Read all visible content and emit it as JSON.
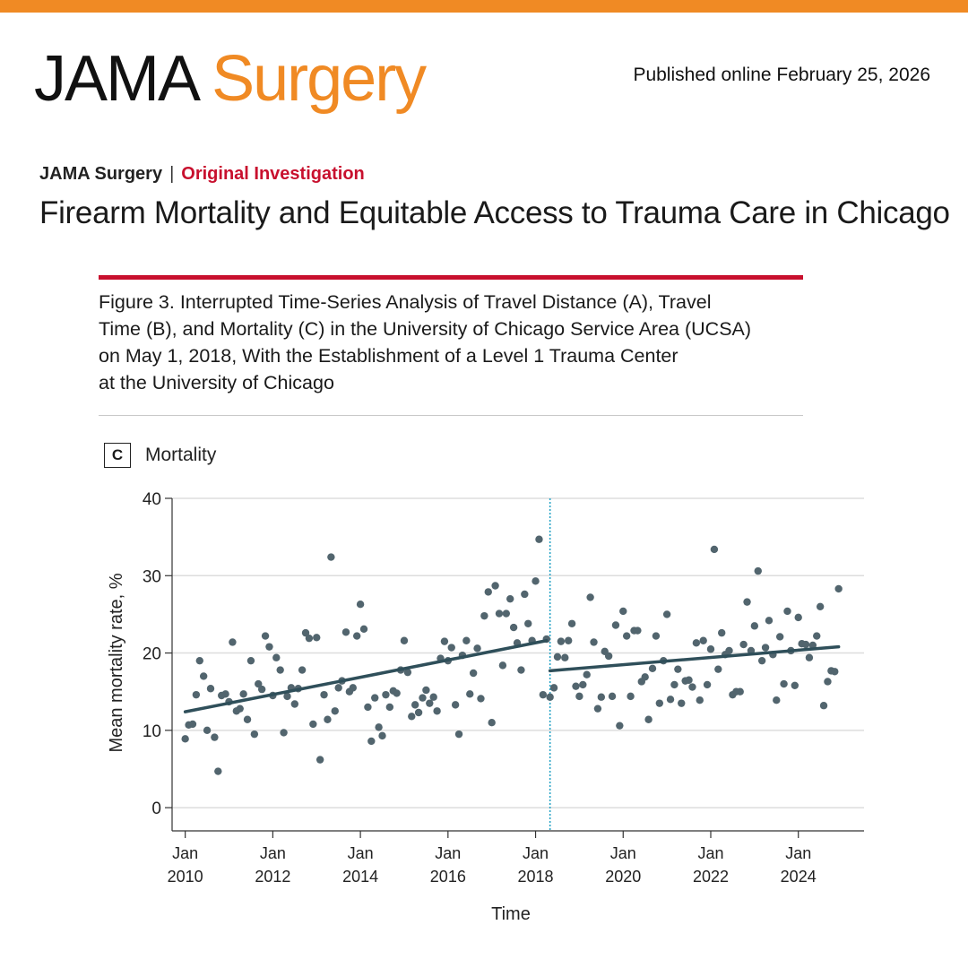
{
  "header": {
    "logo_word1": "JAMA",
    "logo_word2": "Surgery",
    "published": "Published online February 25, 2026"
  },
  "article": {
    "journal": "JAMA Surgery",
    "separator": "|",
    "type": "Original Investigation",
    "title": "Firearm Mortality and Equitable Access to Trauma Care in Chicago"
  },
  "figure": {
    "caption_lines": [
      "Figure 3. Interrupted Time-Series Analysis of Travel Distance (A), Travel",
      "Time (B), and Mortality (C) in the University of Chicago Service Area (UCSA)",
      "on May 1, 2018, With the Establishment of a Level 1 Trauma Center",
      "at the University of Chicago"
    ],
    "panel_letter": "C",
    "panel_title": "Mortality"
  },
  "colors": {
    "brand_orange": "#f08a24",
    "accent_red": "#c8102e",
    "point_color": "#52656e",
    "trend_color": "#2f4f5a",
    "intervention_line": "#2aa5c7"
  },
  "chart_data": {
    "type": "scatter",
    "xlabel": "Time",
    "ylabel": "Mean mortality rate, %",
    "xlim": [
      2009.7,
      2025.5
    ],
    "ylim": [
      -3,
      40
    ],
    "yticks": [
      0,
      10,
      20,
      30,
      40
    ],
    "xticks": [
      {
        "x": 2010,
        "label": [
          "Jan",
          "2010"
        ]
      },
      {
        "x": 2012,
        "label": [
          "Jan",
          "2012"
        ]
      },
      {
        "x": 2014,
        "label": [
          "Jan",
          "2014"
        ]
      },
      {
        "x": 2016,
        "label": [
          "Jan",
          "2016"
        ]
      },
      {
        "x": 2018,
        "label": [
          "Jan",
          "2018"
        ]
      },
      {
        "x": 2020,
        "label": [
          "Jan",
          "2020"
        ]
      },
      {
        "x": 2022,
        "label": [
          "Jan",
          "2022"
        ]
      },
      {
        "x": 2024,
        "label": [
          "Jan",
          "2024"
        ]
      }
    ],
    "grid": "horizontal",
    "intervention": 2018.33,
    "trend_lines": [
      {
        "x": [
          2010,
          2018.25
        ],
        "y": [
          12.4,
          21.6
        ]
      },
      {
        "x": [
          2018.33,
          2024.92
        ],
        "y": [
          17.7,
          20.8
        ]
      }
    ],
    "points": {
      "x": [
        2010.0,
        2010.08,
        2010.17,
        2010.25,
        2010.33,
        2010.42,
        2010.5,
        2010.58,
        2010.67,
        2010.75,
        2010.83,
        2010.92,
        2011.0,
        2011.08,
        2011.17,
        2011.25,
        2011.33,
        2011.42,
        2011.5,
        2011.58,
        2011.67,
        2011.75,
        2011.83,
        2011.92,
        2012.0,
        2012.08,
        2012.17,
        2012.25,
        2012.33,
        2012.42,
        2012.5,
        2012.58,
        2012.67,
        2012.75,
        2012.83,
        2012.92,
        2013.0,
        2013.08,
        2013.17,
        2013.25,
        2013.33,
        2013.42,
        2013.5,
        2013.58,
        2013.67,
        2013.75,
        2013.83,
        2013.92,
        2014.0,
        2014.08,
        2014.17,
        2014.25,
        2014.33,
        2014.42,
        2014.5,
        2014.58,
        2014.67,
        2014.75,
        2014.83,
        2014.92,
        2015.0,
        2015.08,
        2015.17,
        2015.25,
        2015.33,
        2015.42,
        2015.5,
        2015.58,
        2015.67,
        2015.75,
        2015.83,
        2015.92,
        2016.0,
        2016.08,
        2016.17,
        2016.25,
        2016.33,
        2016.42,
        2016.5,
        2016.58,
        2016.67,
        2016.75,
        2016.83,
        2016.92,
        2017.0,
        2017.08,
        2017.17,
        2017.25,
        2017.33,
        2017.42,
        2017.5,
        2017.58,
        2017.67,
        2017.75,
        2017.83,
        2017.92,
        2018.0,
        2018.08,
        2018.17,
        2018.25,
        2018.33,
        2018.42,
        2018.5,
        2018.58,
        2018.67,
        2018.75,
        2018.83,
        2018.92,
        2019.0,
        2019.08,
        2019.17,
        2019.25,
        2019.33,
        2019.42,
        2019.5,
        2019.58,
        2019.67,
        2019.75,
        2019.83,
        2019.92,
        2020.0,
        2020.08,
        2020.17,
        2020.25,
        2020.33,
        2020.42,
        2020.5,
        2020.58,
        2020.67,
        2020.75,
        2020.83,
        2020.92,
        2021.0,
        2021.08,
        2021.17,
        2021.25,
        2021.33,
        2021.42,
        2021.5,
        2021.58,
        2021.67,
        2021.75,
        2021.83,
        2021.92,
        2022.0,
        2022.08,
        2022.17,
        2022.25,
        2022.33,
        2022.42,
        2022.5,
        2022.58,
        2022.67,
        2022.75,
        2022.83,
        2022.92,
        2023.0,
        2023.08,
        2023.17,
        2023.25,
        2023.33,
        2023.42,
        2023.5,
        2023.58,
        2023.67,
        2023.75,
        2023.83,
        2023.92,
        2024.0,
        2024.08,
        2024.17,
        2024.25,
        2024.33,
        2024.42,
        2024.5,
        2024.58,
        2024.67,
        2024.75,
        2024.83,
        2024.92
      ],
      "y": [
        8.9,
        10.7,
        10.8,
        14.6,
        19.0,
        17.0,
        10.0,
        15.4,
        9.1,
        4.7,
        14.5,
        14.7,
        13.7,
        21.4,
        12.5,
        12.8,
        14.7,
        11.4,
        19.0,
        9.5,
        16.0,
        15.3,
        22.2,
        20.8,
        14.5,
        19.4,
        17.8,
        9.7,
        14.4,
        15.5,
        13.4,
        15.4,
        17.8,
        22.6,
        21.9,
        10.8,
        22.0,
        6.2,
        14.6,
        11.4,
        32.4,
        12.5,
        15.5,
        16.4,
        22.7,
        15.0,
        15.5,
        22.2,
        26.3,
        23.1,
        13.0,
        8.6,
        14.2,
        10.4,
        9.3,
        14.6,
        13.0,
        15.1,
        14.8,
        17.8,
        21.6,
        17.5,
        11.8,
        13.3,
        12.3,
        14.2,
        15.2,
        13.5,
        14.3,
        12.5,
        19.3,
        21.5,
        19.0,
        20.7,
        13.3,
        9.5,
        19.7,
        21.6,
        14.7,
        17.4,
        20.6,
        14.1,
        24.8,
        27.9,
        11.0,
        28.7,
        25.1,
        18.4,
        25.1,
        27.0,
        23.3,
        21.3,
        17.8,
        27.6,
        23.8,
        21.6,
        29.3,
        34.7,
        14.6,
        21.8,
        14.3,
        15.5,
        19.5,
        21.5,
        19.4,
        21.6,
        23.8,
        15.7,
        14.4,
        15.9,
        17.2,
        27.2,
        21.4,
        12.8,
        14.3,
        20.2,
        19.6,
        14.4,
        23.6,
        10.6,
        25.4,
        22.2,
        14.4,
        22.9,
        22.9,
        16.3,
        16.9,
        11.4,
        18.0,
        22.2,
        13.5,
        19.0,
        25.0,
        14.0,
        15.9,
        17.9,
        13.5,
        16.4,
        16.5,
        15.6,
        21.3,
        13.9,
        21.6,
        15.9,
        20.5,
        33.4,
        17.9,
        22.6,
        19.8,
        20.3,
        14.6,
        15.0,
        15.0,
        21.1,
        26.6,
        20.3,
        23.5,
        30.6,
        19.0,
        20.7,
        24.2,
        19.8,
        13.9,
        22.1,
        16.0,
        25.4,
        20.3,
        15.8,
        24.6,
        21.2,
        21.1,
        19.4,
        21.0,
        22.2,
        26.0,
        13.2,
        16.3,
        17.7,
        17.6,
        28.3
      ]
    }
  }
}
